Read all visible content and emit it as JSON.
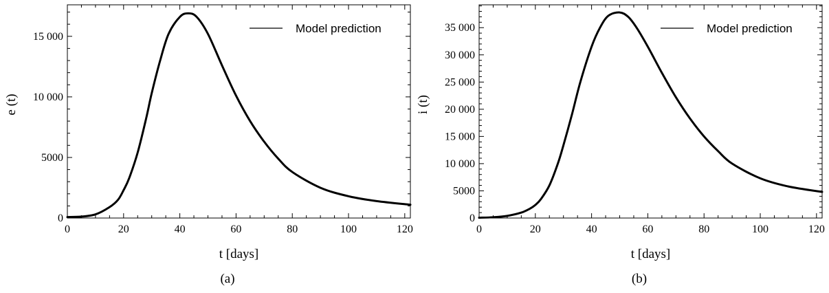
{
  "chart_data": [
    {
      "type": "line",
      "caption": "(a)",
      "xlabel": "t [days]",
      "ylabel": "e (t)",
      "xlim": [
        0,
        122
      ],
      "ylim": [
        0,
        17600
      ],
      "x_ticks": [
        0,
        20,
        40,
        60,
        80,
        100,
        120
      ],
      "x_tick_labels": [
        "0",
        "20",
        "40",
        "60",
        "80",
        "100",
        "120"
      ],
      "y_ticks": [
        0,
        5000,
        10000,
        15000
      ],
      "y_tick_labels": [
        "0",
        "5000",
        "10 000",
        "15 000"
      ],
      "y_minor_step": 1000,
      "x_minor_step": 5,
      "legend_position": "top-right",
      "series": [
        {
          "name": "Model prediction",
          "color": "#000000",
          "x": [
            0,
            5,
            10,
            15,
            18,
            20,
            22,
            25,
            28,
            30,
            33,
            36,
            40,
            43,
            46,
            50,
            55,
            60,
            65,
            70,
            75,
            80,
            90,
            100,
            110,
            122
          ],
          "y": [
            80,
            120,
            300,
            900,
            1500,
            2300,
            3300,
            5400,
            8200,
            10300,
            13000,
            15200,
            16600,
            16900,
            16600,
            15200,
            12600,
            10100,
            8000,
            6300,
            4900,
            3800,
            2500,
            1800,
            1400,
            1100
          ]
        }
      ]
    },
    {
      "type": "line",
      "caption": "(b)",
      "xlabel": "t [days]",
      "ylabel": "i (t)",
      "xlim": [
        0,
        122
      ],
      "ylim": [
        0,
        39200
      ],
      "x_ticks": [
        0,
        20,
        40,
        60,
        80,
        100,
        120
      ],
      "x_tick_labels": [
        "0",
        "20",
        "40",
        "60",
        "80",
        "100",
        "120"
      ],
      "y_ticks": [
        0,
        5000,
        10000,
        15000,
        20000,
        25000,
        30000,
        35000
      ],
      "y_tick_labels": [
        "0",
        "5000",
        "10 000",
        "15 000",
        "20 000",
        "25 000",
        "30 000",
        "35 000"
      ],
      "y_minor_step": 1000,
      "x_minor_step": 5,
      "legend_position": "top-right",
      "series": [
        {
          "name": "Model prediction",
          "color": "#000000",
          "x": [
            0,
            5,
            10,
            15,
            18,
            20,
            22,
            25,
            28,
            30,
            33,
            36,
            40,
            43,
            46,
            50,
            53,
            56,
            60,
            65,
            70,
            75,
            80,
            85,
            90,
            100,
            110,
            122
          ],
          "y": [
            60,
            150,
            400,
            1000,
            1700,
            2400,
            3500,
            6000,
            10000,
            13400,
            19000,
            25000,
            31500,
            35000,
            37200,
            37800,
            37000,
            35000,
            31500,
            26700,
            22200,
            18300,
            15000,
            12300,
            10000,
            7300,
            5800,
            4800
          ]
        }
      ]
    }
  ]
}
